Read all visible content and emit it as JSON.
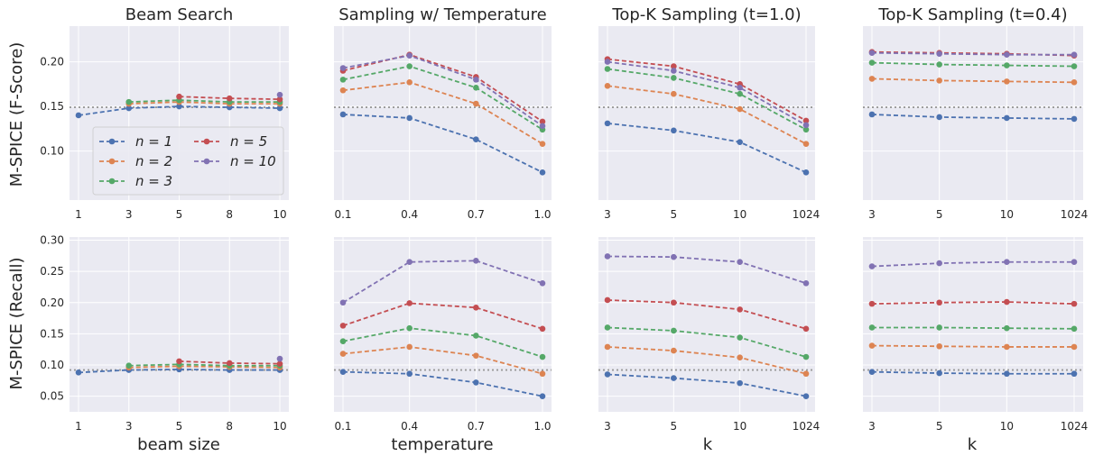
{
  "colors": {
    "n1": "#4c72b0",
    "n2": "#dd8452",
    "n3": "#55a868",
    "n5": "#c44e52",
    "n10": "#8172b3",
    "panel_bg": "#eaeaf2",
    "grid": "#ffffff",
    "reference": "#999999"
  },
  "legend": {
    "placement": "lower-left of top-left panel",
    "entries": [
      {
        "key": "n1",
        "label": "n = 1"
      },
      {
        "key": "n2",
        "label": "n = 2"
      },
      {
        "key": "n3",
        "label": "n = 3"
      },
      {
        "key": "n5",
        "label": "n = 5"
      },
      {
        "key": "n10",
        "label": "n = 10"
      }
    ]
  },
  "row_ylabels": [
    "M-SPICE (F-Score)",
    "M-SPICE (Recall)"
  ],
  "col_xlabels": [
    "beam size",
    "temperature",
    "k",
    "k"
  ],
  "chart_data": [
    {
      "type": "line",
      "title": "Beam Search",
      "xlabel": "",
      "ylabel": "M-SPICE (F-Score)",
      "categories": [
        "1",
        "3",
        "5",
        "8",
        "10"
      ],
      "ylim": [
        0.045,
        0.24
      ],
      "yticks": [
        "0.10",
        "0.15",
        "0.20"
      ],
      "reference_line": 0.149,
      "grid": true,
      "series": [
        {
          "name": "n = 1",
          "key": "n1",
          "values": [
            0.14,
            0.148,
            0.15,
            0.149,
            0.148
          ]
        },
        {
          "name": "n = 2",
          "key": "n2",
          "values": [
            null,
            0.153,
            0.155,
            0.153,
            0.153
          ]
        },
        {
          "name": "n = 3",
          "key": "n3",
          "values": [
            null,
            0.155,
            0.157,
            0.155,
            0.155
          ]
        },
        {
          "name": "n = 5",
          "key": "n5",
          "values": [
            null,
            null,
            0.161,
            0.159,
            0.158
          ]
        },
        {
          "name": "n = 10",
          "key": "n10",
          "values": [
            null,
            null,
            null,
            null,
            0.163
          ]
        }
      ]
    },
    {
      "type": "line",
      "title": "Sampling w/ Temperature",
      "xlabel": "",
      "ylabel": "",
      "categories": [
        "0.1",
        "0.4",
        "0.7",
        "1.0"
      ],
      "ylim": [
        0.045,
        0.24
      ],
      "yticks": [],
      "reference_line": 0.149,
      "grid": true,
      "series": [
        {
          "name": "n = 1",
          "key": "n1",
          "values": [
            0.141,
            0.137,
            0.113,
            0.076
          ]
        },
        {
          "name": "n = 2",
          "key": "n2",
          "values": [
            0.168,
            0.177,
            0.153,
            0.108
          ]
        },
        {
          "name": "n = 3",
          "key": "n3",
          "values": [
            0.18,
            0.195,
            0.171,
            0.124
          ]
        },
        {
          "name": "n = 5",
          "key": "n5",
          "values": [
            0.19,
            0.208,
            0.183,
            0.133
          ]
        },
        {
          "name": "n = 10",
          "key": "n10",
          "values": [
            0.193,
            0.207,
            0.18,
            0.128
          ]
        }
      ]
    },
    {
      "type": "line",
      "title": "Top-K Sampling (t=1.0)",
      "xlabel": "",
      "ylabel": "",
      "categories": [
        "3",
        "5",
        "10",
        "1024"
      ],
      "ylim": [
        0.045,
        0.24
      ],
      "yticks": [],
      "reference_line": 0.149,
      "grid": true,
      "series": [
        {
          "name": "n = 1",
          "key": "n1",
          "values": [
            0.131,
            0.123,
            0.11,
            0.076
          ]
        },
        {
          "name": "n = 2",
          "key": "n2",
          "values": [
            0.173,
            0.164,
            0.147,
            0.108
          ]
        },
        {
          "name": "n = 3",
          "key": "n3",
          "values": [
            0.192,
            0.182,
            0.164,
            0.124
          ]
        },
        {
          "name": "n = 5",
          "key": "n5",
          "values": [
            0.203,
            0.195,
            0.175,
            0.134
          ]
        },
        {
          "name": "n = 10",
          "key": "n10",
          "values": [
            0.2,
            0.19,
            0.171,
            0.129
          ]
        }
      ]
    },
    {
      "type": "line",
      "title": "Top-K Sampling (t=0.4)",
      "xlabel": "",
      "ylabel": "",
      "categories": [
        "3",
        "5",
        "10",
        "1024"
      ],
      "ylim": [
        0.045,
        0.24
      ],
      "yticks": [],
      "reference_line": 0.149,
      "grid": true,
      "series": [
        {
          "name": "n = 1",
          "key": "n1",
          "values": [
            0.141,
            0.138,
            0.137,
            0.136
          ]
        },
        {
          "name": "n = 2",
          "key": "n2",
          "values": [
            0.181,
            0.179,
            0.178,
            0.177
          ]
        },
        {
          "name": "n = 3",
          "key": "n3",
          "values": [
            0.199,
            0.197,
            0.196,
            0.195
          ]
        },
        {
          "name": "n = 5",
          "key": "n5",
          "values": [
            0.211,
            0.21,
            0.209,
            0.207
          ]
        },
        {
          "name": "n = 10",
          "key": "n10",
          "values": [
            0.21,
            0.209,
            0.208,
            0.208
          ]
        }
      ]
    },
    {
      "type": "line",
      "title": "",
      "xlabel": "beam size",
      "ylabel": "M-SPICE (Recall)",
      "categories": [
        "1",
        "3",
        "5",
        "8",
        "10"
      ],
      "ylim": [
        0.025,
        0.305
      ],
      "yticks": [
        "0.05",
        "0.10",
        "0.15",
        "0.20",
        "0.25",
        "0.30"
      ],
      "reference_line": 0.092,
      "grid": true,
      "series": [
        {
          "name": "n = 1",
          "key": "n1",
          "values": [
            0.088,
            0.092,
            0.093,
            0.092,
            0.092
          ]
        },
        {
          "name": "n = 2",
          "key": "n2",
          "values": [
            null,
            0.096,
            0.098,
            0.097,
            0.096
          ]
        },
        {
          "name": "n = 3",
          "key": "n3",
          "values": [
            null,
            0.099,
            0.101,
            0.099,
            0.099
          ]
        },
        {
          "name": "n = 5",
          "key": "n5",
          "values": [
            null,
            null,
            0.106,
            0.103,
            0.102
          ]
        },
        {
          "name": "n = 10",
          "key": "n10",
          "values": [
            null,
            null,
            null,
            null,
            0.11
          ]
        }
      ]
    },
    {
      "type": "line",
      "title": "",
      "xlabel": "temperature",
      "ylabel": "",
      "categories": [
        "0.1",
        "0.4",
        "0.7",
        "1.0"
      ],
      "ylim": [
        0.025,
        0.305
      ],
      "yticks": [],
      "reference_line": 0.092,
      "grid": true,
      "series": [
        {
          "name": "n = 1",
          "key": "n1",
          "values": [
            0.089,
            0.086,
            0.072,
            0.05
          ]
        },
        {
          "name": "n = 2",
          "key": "n2",
          "values": [
            0.118,
            0.129,
            0.115,
            0.086
          ]
        },
        {
          "name": "n = 3",
          "key": "n3",
          "values": [
            0.138,
            0.159,
            0.147,
            0.113
          ]
        },
        {
          "name": "n = 5",
          "key": "n5",
          "values": [
            0.163,
            0.199,
            0.192,
            0.158
          ]
        },
        {
          "name": "n = 10",
          "key": "n10",
          "values": [
            0.2,
            0.265,
            0.267,
            0.231
          ]
        }
      ]
    },
    {
      "type": "line",
      "title": "",
      "xlabel": "k",
      "ylabel": "",
      "categories": [
        "3",
        "5",
        "10",
        "1024"
      ],
      "ylim": [
        0.025,
        0.305
      ],
      "yticks": [],
      "reference_line": 0.092,
      "grid": true,
      "series": [
        {
          "name": "n = 1",
          "key": "n1",
          "values": [
            0.085,
            0.079,
            0.071,
            0.05
          ]
        },
        {
          "name": "n = 2",
          "key": "n2",
          "values": [
            0.129,
            0.123,
            0.112,
            0.086
          ]
        },
        {
          "name": "n = 3",
          "key": "n3",
          "values": [
            0.16,
            0.155,
            0.144,
            0.113
          ]
        },
        {
          "name": "n = 5",
          "key": "n5",
          "values": [
            0.204,
            0.2,
            0.189,
            0.158
          ]
        },
        {
          "name": "n = 10",
          "key": "n10",
          "values": [
            0.274,
            0.273,
            0.265,
            0.231
          ]
        }
      ]
    },
    {
      "type": "line",
      "title": "",
      "xlabel": "k",
      "ylabel": "",
      "categories": [
        "3",
        "5",
        "10",
        "1024"
      ],
      "ylim": [
        0.025,
        0.305
      ],
      "yticks": [],
      "reference_line": 0.092,
      "grid": true,
      "series": [
        {
          "name": "n = 1",
          "key": "n1",
          "values": [
            0.089,
            0.087,
            0.086,
            0.086
          ]
        },
        {
          "name": "n = 2",
          "key": "n2",
          "values": [
            0.131,
            0.13,
            0.129,
            0.129
          ]
        },
        {
          "name": "n = 3",
          "key": "n3",
          "values": [
            0.16,
            0.16,
            0.159,
            0.158
          ]
        },
        {
          "name": "n = 5",
          "key": "n5",
          "values": [
            0.198,
            0.2,
            0.201,
            0.198
          ]
        },
        {
          "name": "n = 10",
          "key": "n10",
          "values": [
            0.258,
            0.263,
            0.265,
            0.265
          ]
        }
      ]
    }
  ]
}
